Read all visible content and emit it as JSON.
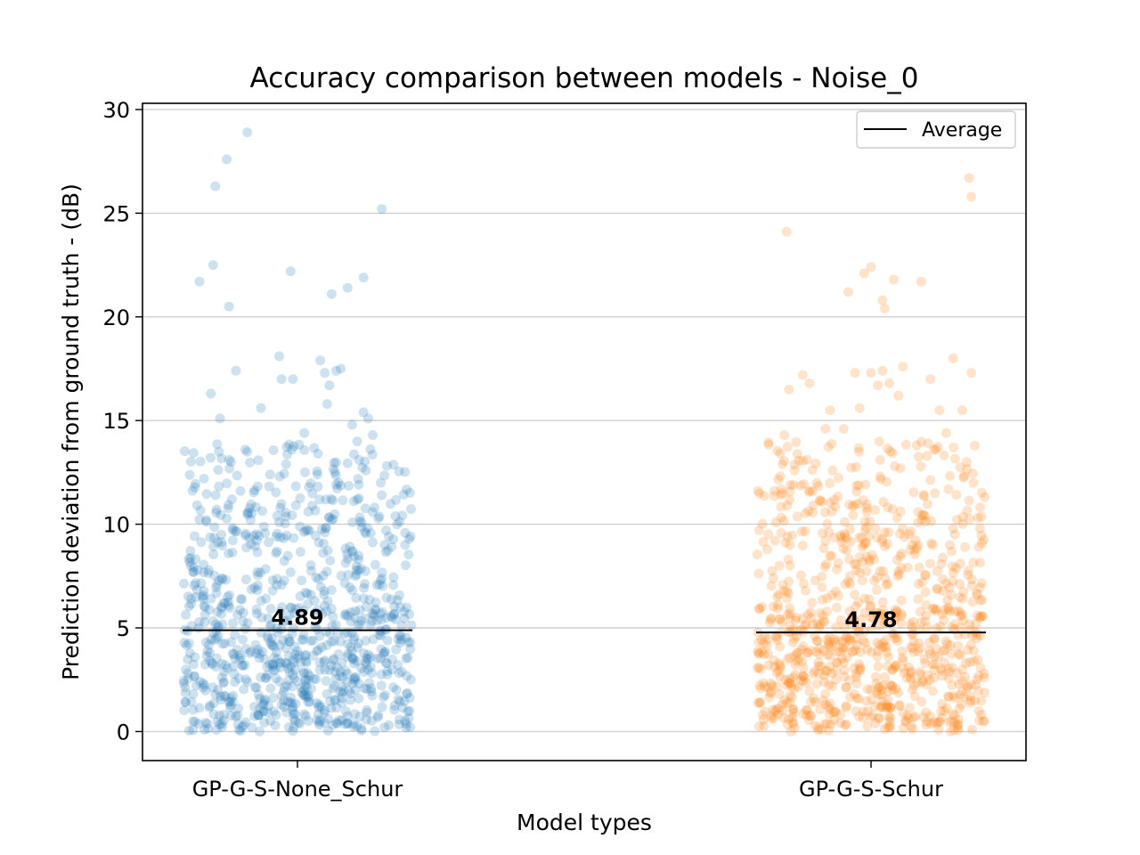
{
  "chart_data": {
    "type": "scatter",
    "title": "Accuracy comparison between models - Noise_0",
    "xlabel": "Model types",
    "ylabel": "Prediction deviation from ground truth - (dB)",
    "categories": [
      "GP-G-S-None_Schur",
      "GP-G-S-Schur"
    ],
    "ylim": [
      -1.4,
      30.3
    ],
    "yticks": [
      0,
      5,
      10,
      15,
      20,
      25,
      30
    ],
    "grid": "horizontal",
    "legend": {
      "position": "top-right",
      "label": "Average"
    },
    "averages": [
      4.89,
      4.78
    ],
    "average_labels": [
      "4.89",
      "4.78"
    ],
    "series_colors": [
      "#1f77b4",
      "#ff7f0e"
    ],
    "series": [
      {
        "category": "GP-G-S-None_Schur",
        "color": "#1f77b4",
        "points": [
          {
            "x": -0.43,
            "y": 21.7
          },
          {
            "x": -0.37,
            "y": 22.5
          },
          {
            "x": -0.36,
            "y": 26.3
          },
          {
            "x": -0.31,
            "y": 27.6
          },
          {
            "x": -0.3,
            "y": 20.5
          },
          {
            "x": -0.22,
            "y": 28.9
          },
          {
            "x": -0.03,
            "y": 22.2
          },
          {
            "x": 0.15,
            "y": 21.1
          },
          {
            "x": 0.22,
            "y": 21.4
          },
          {
            "x": 0.29,
            "y": 21.9
          },
          {
            "x": 0.37,
            "y": 25.2
          },
          {
            "x": -0.38,
            "y": 16.3
          },
          {
            "x": -0.34,
            "y": 15.1
          },
          {
            "x": -0.27,
            "y": 17.4
          },
          {
            "x": -0.22,
            "y": 13.5
          },
          {
            "x": -0.16,
            "y": 15.6
          },
          {
            "x": -0.08,
            "y": 18.1
          },
          {
            "x": -0.07,
            "y": 17.0
          },
          {
            "x": -0.02,
            "y": 17.0
          },
          {
            "x": 0.03,
            "y": 14.4
          },
          {
            "x": 0.09,
            "y": 13.4
          },
          {
            "x": 0.1,
            "y": 17.9
          },
          {
            "x": 0.12,
            "y": 17.3
          },
          {
            "x": 0.14,
            "y": 16.7
          },
          {
            "x": 0.17,
            "y": 17.4
          },
          {
            "x": 0.19,
            "y": 17.5
          },
          {
            "x": 0.13,
            "y": 15.8
          },
          {
            "x": 0.24,
            "y": 14.8
          },
          {
            "x": 0.29,
            "y": 15.4
          },
          {
            "x": 0.31,
            "y": 15.1
          },
          {
            "x": 0.33,
            "y": 14.3
          },
          {
            "x": 0.27,
            "y": 13.1
          },
          {
            "x": -0.41,
            "y": 12.2
          },
          {
            "x": -0.3,
            "y": 13.1
          },
          {
            "x": -0.25,
            "y": 11.6
          },
          {
            "x": -0.12,
            "y": 12.4
          },
          {
            "x": -0.05,
            "y": 12.9
          },
          {
            "x": 0.05,
            "y": 11.8
          },
          {
            "x": 0.18,
            "y": 12.0
          },
          {
            "x": 0.3,
            "y": 12.6
          },
          {
            "x": 0.37,
            "y": 11.4
          }
        ]
      },
      {
        "category": "GP-G-S-Schur",
        "color": "#ff7f0e",
        "points": [
          {
            "x": -0.37,
            "y": 24.1
          },
          {
            "x": -0.1,
            "y": 21.2
          },
          {
            "x": -0.03,
            "y": 22.1
          },
          {
            "x": 0.0,
            "y": 22.4
          },
          {
            "x": 0.05,
            "y": 20.8
          },
          {
            "x": 0.06,
            "y": 20.4
          },
          {
            "x": 0.1,
            "y": 21.8
          },
          {
            "x": 0.22,
            "y": 21.7
          },
          {
            "x": 0.43,
            "y": 26.7
          },
          {
            "x": 0.44,
            "y": 25.8
          },
          {
            "x": -0.36,
            "y": 16.5
          },
          {
            "x": -0.38,
            "y": 14.3
          },
          {
            "x": -0.3,
            "y": 17.2
          },
          {
            "x": -0.27,
            "y": 16.8
          },
          {
            "x": -0.2,
            "y": 14.6
          },
          {
            "x": -0.18,
            "y": 15.5
          },
          {
            "x": -0.12,
            "y": 14.6
          },
          {
            "x": -0.07,
            "y": 17.3
          },
          {
            "x": -0.05,
            "y": 15.6
          },
          {
            "x": 0.0,
            "y": 17.3
          },
          {
            "x": 0.03,
            "y": 16.7
          },
          {
            "x": 0.05,
            "y": 17.4
          },
          {
            "x": 0.08,
            "y": 16.8
          },
          {
            "x": 0.12,
            "y": 16.2
          },
          {
            "x": 0.14,
            "y": 17.6
          },
          {
            "x": 0.2,
            "y": 13.8
          },
          {
            "x": 0.26,
            "y": 17.0
          },
          {
            "x": 0.3,
            "y": 15.5
          },
          {
            "x": 0.33,
            "y": 14.4
          },
          {
            "x": 0.36,
            "y": 18.0
          },
          {
            "x": 0.4,
            "y": 15.5
          },
          {
            "x": 0.44,
            "y": 17.3
          },
          {
            "x": -0.28,
            "y": 13.1
          },
          {
            "x": 0.04,
            "y": 12.3
          },
          {
            "x": 0.42,
            "y": 13.0
          },
          {
            "x": -0.34,
            "y": 11.9
          },
          {
            "x": 0.28,
            "y": 11.5
          }
        ]
      }
    ],
    "scatter_generator": {
      "points_per_series": 900,
      "seed_series_1": 7,
      "seed_series_2": 11
    }
  }
}
